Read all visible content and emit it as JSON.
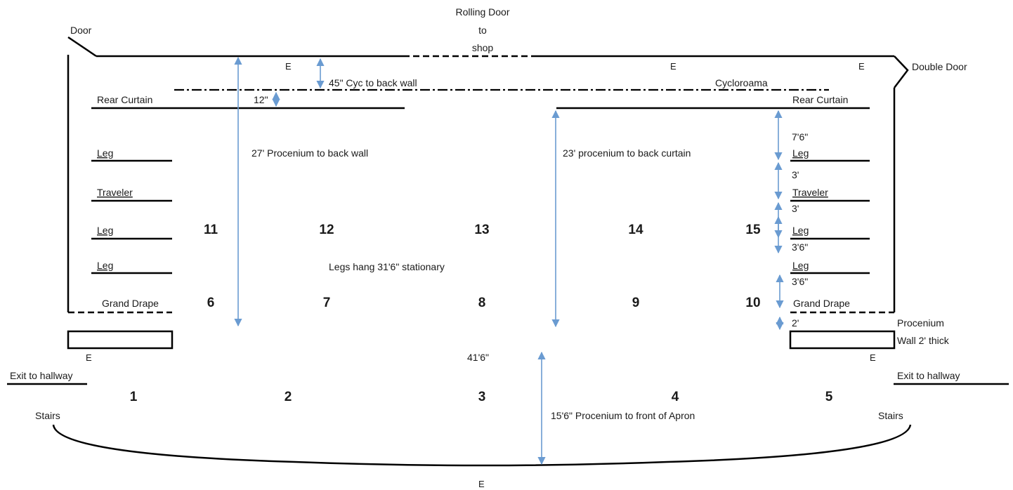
{
  "labels": {
    "door": "Door",
    "rolling_door_1": "Rolling Door",
    "rolling_door_2": "to",
    "rolling_door_3": "shop",
    "double_door": "Double Door",
    "e": "E",
    "cyc_to_back_wall": "45\" Cyc to back wall",
    "cycloroama": "Cycloroama",
    "rear_curtain": "Rear Curtain",
    "twelve_in": "12\"",
    "leg": "Leg",
    "traveler": "Traveler",
    "grand_drape": "Grand Drape",
    "procenium_to_back_wall": "27' Procenium to back wall",
    "procenium_to_back_curtain": "23' procenium to back curtain",
    "legs_hang": "Legs hang 31'6\" stationary",
    "dim_7_6": "7'6\"",
    "dim_3": "3'",
    "dim_3_6": "3'6\"",
    "dim_2": "2'",
    "procenium_wall_1": "Procenium",
    "procenium_wall_2": "Wall 2' thick",
    "width_41_6": "41'6\"",
    "exit_to_hallway": "Exit to hallway",
    "stairs": "Stairs",
    "apron_depth": "15'6\" Procenium to front of Apron"
  },
  "areas": {
    "stage_upper": [
      "11",
      "12",
      "13",
      "14",
      "15"
    ],
    "stage_lower": [
      "6",
      "7",
      "8",
      "9",
      "10"
    ],
    "apron": [
      "1",
      "2",
      "3",
      "4",
      "5"
    ]
  },
  "colors": {
    "line": "#000000",
    "dimension": "#6a9bd1",
    "text": "#1a1a1a"
  }
}
